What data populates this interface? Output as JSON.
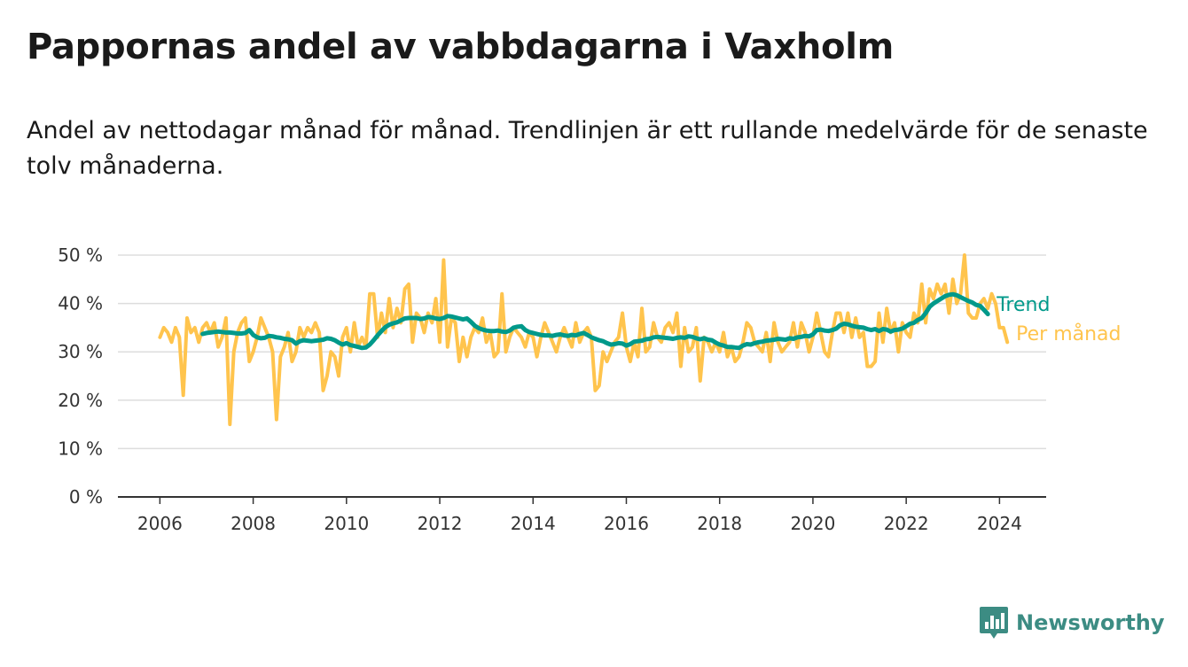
{
  "title": "Pappornas andel av vabbdagarna i Vaxholm",
  "subtitle": "Andel av nettodagar månad för månad. Trendlinjen är ett rullande medelvärde för de senaste tolv månaderna.",
  "brand": "Newsworthy",
  "icons": {
    "brand": "newsworthy-logo-icon"
  },
  "colors": {
    "per_month": "#FFC44D",
    "trend": "#00998A",
    "grid": "#dddddd",
    "axis": "#333333",
    "brand": "#3c8c83"
  },
  "chart_data": {
    "type": "line",
    "title": "Pappornas andel av vabbdagarna i Vaxholm",
    "xlabel": "",
    "ylabel": "",
    "x_start": "2006-01",
    "x_step": "1 month",
    "xlim": [
      2005.1,
      2025.0
    ],
    "ylim": [
      0,
      50
    ],
    "grid": true,
    "legend": "inline-right",
    "x_ticks": [
      {
        "value": 2006,
        "label": "2006"
      },
      {
        "value": 2008,
        "label": "2008"
      },
      {
        "value": 2010,
        "label": "2010"
      },
      {
        "value": 2012,
        "label": "2012"
      },
      {
        "value": 2014,
        "label": "2014"
      },
      {
        "value": 2016,
        "label": "2016"
      },
      {
        "value": 2018,
        "label": "2018"
      },
      {
        "value": 2020,
        "label": "2020"
      },
      {
        "value": 2022,
        "label": "2022"
      },
      {
        "value": 2024,
        "label": "2024"
      }
    ],
    "y_ticks": [
      {
        "value": 0,
        "label": "0 %"
      },
      {
        "value": 10,
        "label": "10 %"
      },
      {
        "value": 20,
        "label": "20 %"
      },
      {
        "value": 30,
        "label": "30 %"
      },
      {
        "value": 40,
        "label": "40 %"
      },
      {
        "value": 50,
        "label": "50 %"
      }
    ],
    "series": [
      {
        "name": "Per månad",
        "color": "#FFC44D",
        "values": [
          33,
          35,
          34,
          32,
          35,
          33,
          21,
          37,
          34,
          35,
          32,
          35,
          36,
          34,
          36,
          31,
          33,
          37,
          15,
          30,
          34,
          36,
          37,
          28,
          30,
          33,
          37,
          35,
          33,
          30,
          16,
          29,
          31,
          34,
          28,
          30,
          35,
          33,
          35,
          34,
          36,
          34,
          22,
          25,
          30,
          29,
          25,
          33,
          35,
          30,
          36,
          31,
          33,
          31,
          42,
          42,
          33,
          38,
          34,
          41,
          35,
          39,
          36,
          43,
          44,
          32,
          38,
          37,
          34,
          38,
          36,
          41,
          32,
          49,
          31,
          37,
          36,
          28,
          33,
          29,
          33,
          35,
          34,
          37,
          32,
          34,
          29,
          30,
          42,
          30,
          33,
          35,
          34,
          33,
          31,
          34,
          33,
          29,
          33,
          36,
          34,
          32,
          30,
          33,
          35,
          33,
          31,
          36,
          32,
          34,
          35,
          33,
          22,
          23,
          30,
          28,
          30,
          32,
          33,
          38,
          31,
          28,
          32,
          29,
          39,
          30,
          31,
          36,
          33,
          32,
          35,
          36,
          34,
          38,
          27,
          35,
          30,
          31,
          35,
          24,
          33,
          32,
          30,
          32,
          30,
          34,
          29,
          31,
          28,
          29,
          32,
          36,
          35,
          32,
          31,
          30,
          34,
          28,
          36,
          32,
          30,
          31,
          32,
          36,
          31,
          36,
          34,
          30,
          33,
          38,
          34,
          30,
          29,
          34,
          38,
          38,
          34,
          38,
          33,
          37,
          33,
          34,
          27,
          27,
          28,
          38,
          32,
          39,
          34,
          36,
          30,
          36,
          34,
          33,
          38,
          36,
          44,
          36,
          43,
          41,
          44,
          42,
          44,
          38,
          45,
          40,
          42,
          50,
          38,
          37,
          37,
          40,
          41,
          39,
          42,
          40,
          35,
          35,
          32
        ]
      },
      {
        "name": "Trend",
        "color": "#00998A",
        "x_offset_months": 11,
        "values": [
          33.7,
          33.9,
          34.0,
          34.1,
          34.2,
          34.1,
          34.0,
          34.0,
          33.9,
          33.8,
          33.8,
          33.9,
          34.5,
          33.5,
          33.0,
          32.8,
          32.9,
          33.3,
          33.2,
          33.0,
          32.9,
          32.7,
          32.6,
          32.4,
          31.7,
          32.2,
          32.4,
          32.3,
          32.2,
          32.3,
          32.4,
          32.5,
          32.8,
          32.7,
          32.4,
          31.9,
          31.5,
          31.8,
          31.4,
          31.2,
          31.0,
          30.8,
          30.9,
          31.5,
          32.4,
          33.4,
          34.3,
          35.1,
          35.6,
          35.9,
          36.1,
          36.5,
          36.9,
          37.0,
          37.0,
          37.0,
          36.8,
          36.9,
          37.2,
          37.1,
          36.9,
          36.8,
          37.0,
          37.4,
          37.3,
          37.1,
          36.9,
          36.7,
          36.9,
          36.2,
          35.4,
          34.9,
          34.6,
          34.4,
          34.3,
          34.3,
          34.4,
          34.2,
          34.1,
          34.4,
          35.0,
          35.2,
          35.3,
          34.5,
          34.1,
          33.9,
          33.7,
          33.5,
          33.4,
          33.4,
          33.3,
          33.5,
          33.6,
          33.4,
          33.3,
          33.5,
          33.4,
          33.7,
          33.9,
          33.5,
          33.0,
          32.7,
          32.4,
          32.2,
          31.8,
          31.5,
          31.6,
          31.8,
          31.7,
          31.3,
          31.6,
          32.1,
          32.2,
          32.3,
          32.6,
          32.7,
          33.0,
          33.1,
          33.0,
          32.9,
          32.8,
          32.7,
          32.9,
          33.0,
          32.9,
          33.2,
          33.1,
          32.8,
          32.6,
          32.8,
          32.5,
          32.4,
          31.9,
          31.5,
          31.3,
          31.0,
          31.0,
          30.9,
          30.8,
          31.3,
          31.6,
          31.5,
          31.8,
          32.0,
          32.1,
          32.3,
          32.4,
          32.5,
          32.7,
          32.6,
          32.5,
          32.8,
          32.7,
          33.0,
          33.1,
          33.3,
          33.2,
          33.6,
          34.5,
          34.6,
          34.4,
          34.3,
          34.5,
          34.8,
          35.5,
          35.8,
          35.7,
          35.4,
          35.2,
          35.1,
          35.0,
          34.7,
          34.5,
          34.7,
          34.3,
          34.7,
          34.6,
          34.2,
          34.5,
          34.6,
          34.8,
          35.3,
          35.8,
          36.0,
          36.6,
          37.0,
          38.0,
          39.3,
          40.0,
          40.5,
          41.0,
          41.5,
          41.8,
          41.9,
          41.7,
          41.3,
          40.9,
          40.5,
          40.2,
          39.7,
          39.5,
          38.7,
          37.8
        ]
      }
    ]
  }
}
